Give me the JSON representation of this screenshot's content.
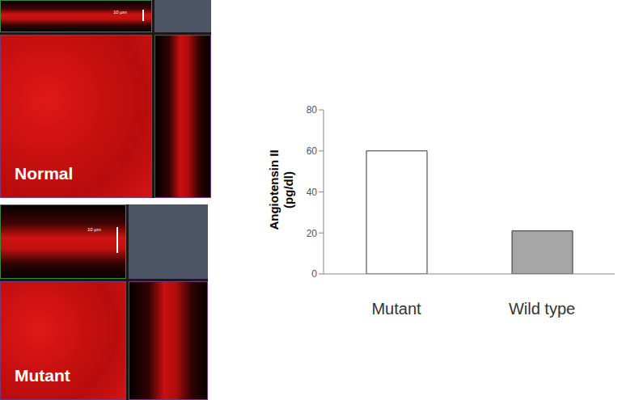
{
  "chart_data": {
    "type": "bar",
    "ylabel": [
      "Angiotensin II",
      "(pg/dl)"
    ],
    "categories": [
      "Mutant",
      "Wild type"
    ],
    "values": [
      60,
      21
    ],
    "colors": [
      "#ffffff",
      "#a6a6a6"
    ],
    "ylim": [
      0,
      80
    ],
    "yticks": [
      0,
      20,
      40,
      60,
      80
    ],
    "grid": false
  },
  "images": [
    {
      "label": "Normal",
      "scale_bar": "10 μm"
    },
    {
      "label": "Mutant",
      "scale_bar": "10 μm"
    }
  ]
}
